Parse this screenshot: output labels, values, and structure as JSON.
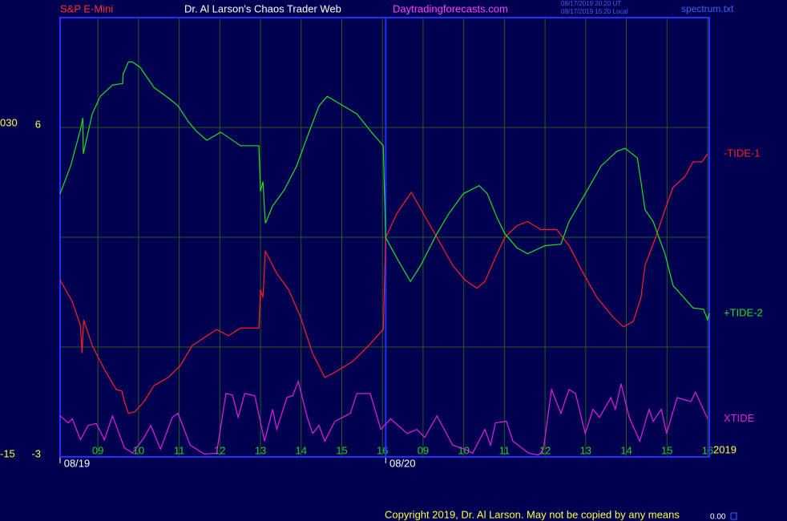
{
  "chart_data": {
    "type": "line",
    "header": {
      "instrument": "S&P E-Mini",
      "site": "Dr. Al Larson's Chaos Trader Web",
      "url": "Daytradingforecasts.com",
      "timestamp_ut": "08/17/2019 20:20 UT",
      "timestamp_local": "08/17/2019 15:20 Local",
      "file": "spectrum.txt"
    },
    "footer": {
      "copyright": "Copyright 2019, Dr. Al Larson. May not be copied by any means",
      "counter": "0.00"
    },
    "year_label": "2019",
    "xlim": [
      0.07,
      16.04
    ],
    "xticks": [
      {
        "value": 1,
        "label": "09"
      },
      {
        "value": 2,
        "label": "10"
      },
      {
        "value": 3,
        "label": "11"
      },
      {
        "value": 4,
        "label": "12"
      },
      {
        "value": 5,
        "label": "13"
      },
      {
        "value": 6,
        "label": "14"
      },
      {
        "value": 7,
        "label": "15"
      },
      {
        "value": 8,
        "label": "16"
      },
      {
        "value": 9,
        "label": "09"
      },
      {
        "value": 10,
        "label": "10"
      },
      {
        "value": 11,
        "label": "11"
      },
      {
        "value": 12,
        "label": "12"
      },
      {
        "value": 13,
        "label": "13"
      },
      {
        "value": 14,
        "label": "14"
      },
      {
        "value": 15,
        "label": "15"
      },
      {
        "value": 16,
        "label": "16"
      }
    ],
    "date_ticks": [
      {
        "value": 0.07,
        "label": "08/19"
      },
      {
        "value": 8.08,
        "label": "08/20"
      }
    ],
    "ylim": [
      -3,
      9
    ],
    "yticks": [
      -3,
      6
    ],
    "ygrid": [
      0,
      3,
      6
    ],
    "y2lim": [
      -15,
      44.7
    ],
    "y2ticks": [
      -15,
      {
        "value": 30,
        "label": "030"
      }
    ],
    "grid": true,
    "series": [
      {
        "name": "-TIDE-1",
        "color": "#ff2020",
        "x": [
          0.07,
          0.37,
          0.57,
          0.61,
          0.65,
          0.86,
          1.16,
          1.45,
          1.59,
          1.65,
          1.75,
          1.91,
          2.14,
          2.38,
          2.73,
          3.03,
          3.32,
          3.62,
          3.92,
          4.21,
          4.51,
          4.96,
          5.0,
          5.06,
          5.12,
          5.4,
          5.69,
          5.99,
          6.28,
          6.58,
          6.78,
          7.27,
          7.66,
          8.02,
          8.08,
          8.35,
          8.71,
          9.04,
          9.4,
          9.73,
          10.03,
          10.32,
          10.52,
          10.82,
          11.01,
          11.31,
          11.57,
          11.9,
          12.29,
          12.59,
          12.89,
          13.28,
          13.68,
          13.93,
          14.17,
          14.36,
          14.46,
          14.72,
          14.95,
          15.15,
          15.45,
          15.64,
          15.86,
          16.0
        ],
        "values": [
          1.83,
          1.24,
          0.59,
          -0.17,
          0.74,
          0.04,
          -0.61,
          -1.16,
          -1.2,
          -1.48,
          -1.81,
          -1.77,
          -1.48,
          -1.05,
          -0.83,
          -0.5,
          0.04,
          0.26,
          0.48,
          0.31,
          0.52,
          0.52,
          1.57,
          1.35,
          2.62,
          2.01,
          1.57,
          0.81,
          -0.17,
          -0.83,
          -0.72,
          -0.39,
          0.04,
          0.48,
          2.99,
          3.64,
          4.23,
          3.58,
          2.88,
          2.23,
          1.83,
          1.61,
          1.79,
          2.55,
          2.99,
          3.32,
          3.43,
          3.21,
          3.21,
          2.77,
          2.12,
          1.35,
          0.81,
          0.55,
          0.7,
          1.35,
          2.23,
          2.99,
          3.75,
          4.36,
          4.67,
          5.06,
          5.06,
          5.28
        ]
      },
      {
        "name": "+TIDE-2",
        "color": "#20e020",
        "x": [
          0.07,
          0.33,
          0.57,
          0.63,
          0.64,
          0.86,
          1.06,
          1.36,
          1.61,
          1.62,
          1.75,
          1.85,
          2.04,
          2.38,
          2.73,
          2.97,
          3.23,
          3.43,
          3.68,
          4.02,
          4.51,
          4.96,
          5.0,
          5.06,
          5.12,
          5.3,
          5.59,
          5.89,
          6.18,
          6.44,
          6.64,
          6.87,
          7.37,
          7.76,
          8.02,
          8.08,
          8.35,
          8.69,
          8.94,
          9.34,
          9.63,
          9.99,
          10.38,
          10.58,
          10.82,
          11.01,
          11.31,
          11.57,
          12.0,
          12.39,
          12.59,
          12.99,
          13.38,
          13.77,
          13.97,
          14.27,
          14.36,
          14.46,
          14.66,
          14.95,
          15.15,
          15.45,
          15.64,
          15.9,
          16.0,
          16.04
        ],
        "values": [
          4.19,
          4.95,
          5.94,
          6.26,
          5.28,
          6.37,
          6.85,
          7.16,
          7.2,
          7.46,
          7.79,
          7.79,
          7.64,
          7.09,
          6.81,
          6.59,
          6.15,
          5.89,
          5.65,
          5.87,
          5.5,
          5.5,
          4.25,
          4.52,
          3.38,
          3.86,
          4.3,
          4.95,
          5.83,
          6.59,
          6.85,
          6.7,
          6.37,
          5.83,
          5.5,
          2.99,
          2.44,
          1.79,
          2.23,
          3.1,
          3.64,
          4.19,
          4.41,
          4.19,
          3.53,
          3.1,
          2.71,
          2.55,
          2.77,
          2.81,
          3.43,
          4.19,
          4.95,
          5.35,
          5.43,
          5.17,
          4.52,
          3.75,
          3.43,
          2.55,
          1.68,
          1.31,
          1.07,
          1.03,
          0.74,
          0.92
        ]
      },
      {
        "name": "XTIDE",
        "color": "#e020e0",
        "x": [
          0.07,
          0.27,
          0.37,
          0.57,
          0.76,
          0.96,
          1.16,
          1.36,
          1.65,
          1.85,
          2.14,
          2.3,
          2.54,
          2.83,
          2.97,
          3.27,
          3.62,
          3.92,
          4.15,
          4.31,
          4.45,
          4.61,
          4.86,
          5.1,
          5.3,
          5.4,
          5.65,
          5.79,
          5.93,
          6.15,
          6.28,
          6.44,
          6.58,
          6.83,
          7.21,
          7.37,
          7.7,
          7.96,
          8.2,
          8.61,
          8.85,
          9.04,
          9.34,
          9.73,
          10.03,
          10.22,
          10.52,
          10.66,
          10.78,
          11.05,
          11.21,
          11.6,
          11.84,
          11.96,
          12.16,
          12.39,
          12.59,
          12.75,
          12.99,
          13.18,
          13.34,
          13.62,
          13.73,
          13.87,
          14.07,
          14.33,
          14.56,
          14.66,
          14.86,
          14.99,
          15.25,
          15.59,
          15.7,
          16.0
        ],
        "values": [
          -1.88,
          -2.07,
          -1.96,
          -2.53,
          -2.14,
          -2.09,
          -2.53,
          -1.88,
          -2.75,
          -2.9,
          -2.47,
          -2.14,
          -2.79,
          -1.92,
          -1.81,
          -2.68,
          -2.92,
          -2.9,
          -1.27,
          -1.31,
          -1.92,
          -1.27,
          -1.33,
          -2.57,
          -1.7,
          -2.25,
          -1.38,
          -1.33,
          -0.94,
          -1.92,
          -2.36,
          -2.14,
          -2.57,
          -2.03,
          -1.81,
          -1.27,
          -1.27,
          -2.25,
          -1.96,
          -2.36,
          -2.25,
          -2.47,
          -1.88,
          -2.68,
          -2.79,
          -2.9,
          -2.25,
          -2.68,
          -2.07,
          -2.03,
          -2.57,
          -2.9,
          -2.95,
          -2.79,
          -1.16,
          -1.81,
          -1.16,
          -1.27,
          -2.36,
          -1.7,
          -1.92,
          -1.38,
          -1.7,
          -1.0,
          -1.92,
          -2.57,
          -1.7,
          -2.03,
          -1.7,
          -2.36,
          -1.38,
          -1.49,
          -1.23,
          -1.96
        ]
      }
    ]
  }
}
